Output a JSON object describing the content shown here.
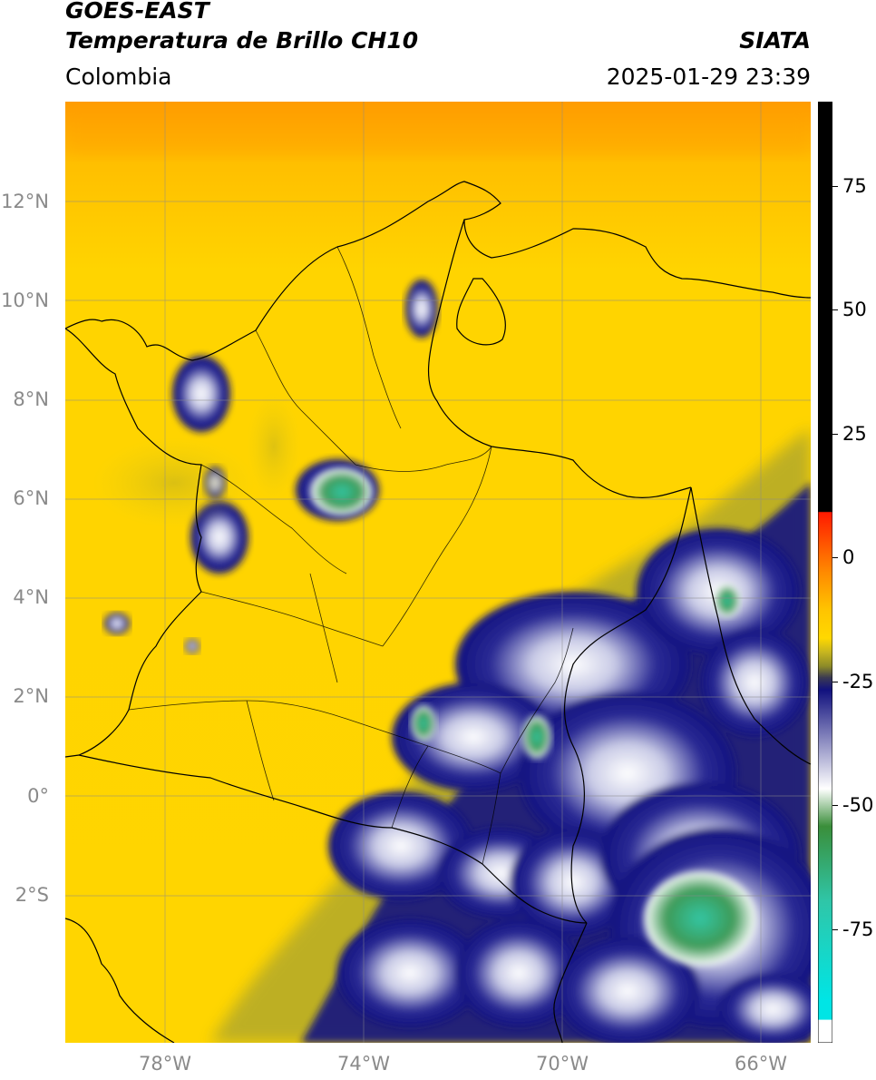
{
  "header": {
    "satellite": "GOES-EAST",
    "product": "Temperatura de Brillo CH10",
    "organization": "SIATA",
    "region": "Colombia",
    "timestamp": "2025-01-29 23:39"
  },
  "axes": {
    "lat_labels": [
      "12°N",
      "10°N",
      "8°N",
      "6°N",
      "4°N",
      "2°N",
      "0°",
      "2°S"
    ],
    "lon_labels": [
      "78°W",
      "74°W",
      "70°W",
      "66°W"
    ]
  },
  "colorbar": {
    "labels": [
      "75",
      "50",
      "25",
      "0",
      "-25",
      "-50",
      "-75"
    ],
    "colors": {
      "hot": "#000000",
      "warm_red": "#ff1a00",
      "orange": "#ffa200",
      "yellow": "#ffd500",
      "olive": "#8c8a28",
      "navy": "#11117e",
      "white": "#ffffff",
      "green": "#3a8e3a",
      "teal": "#2fc6a8",
      "cyan": "#00e5e5"
    }
  }
}
